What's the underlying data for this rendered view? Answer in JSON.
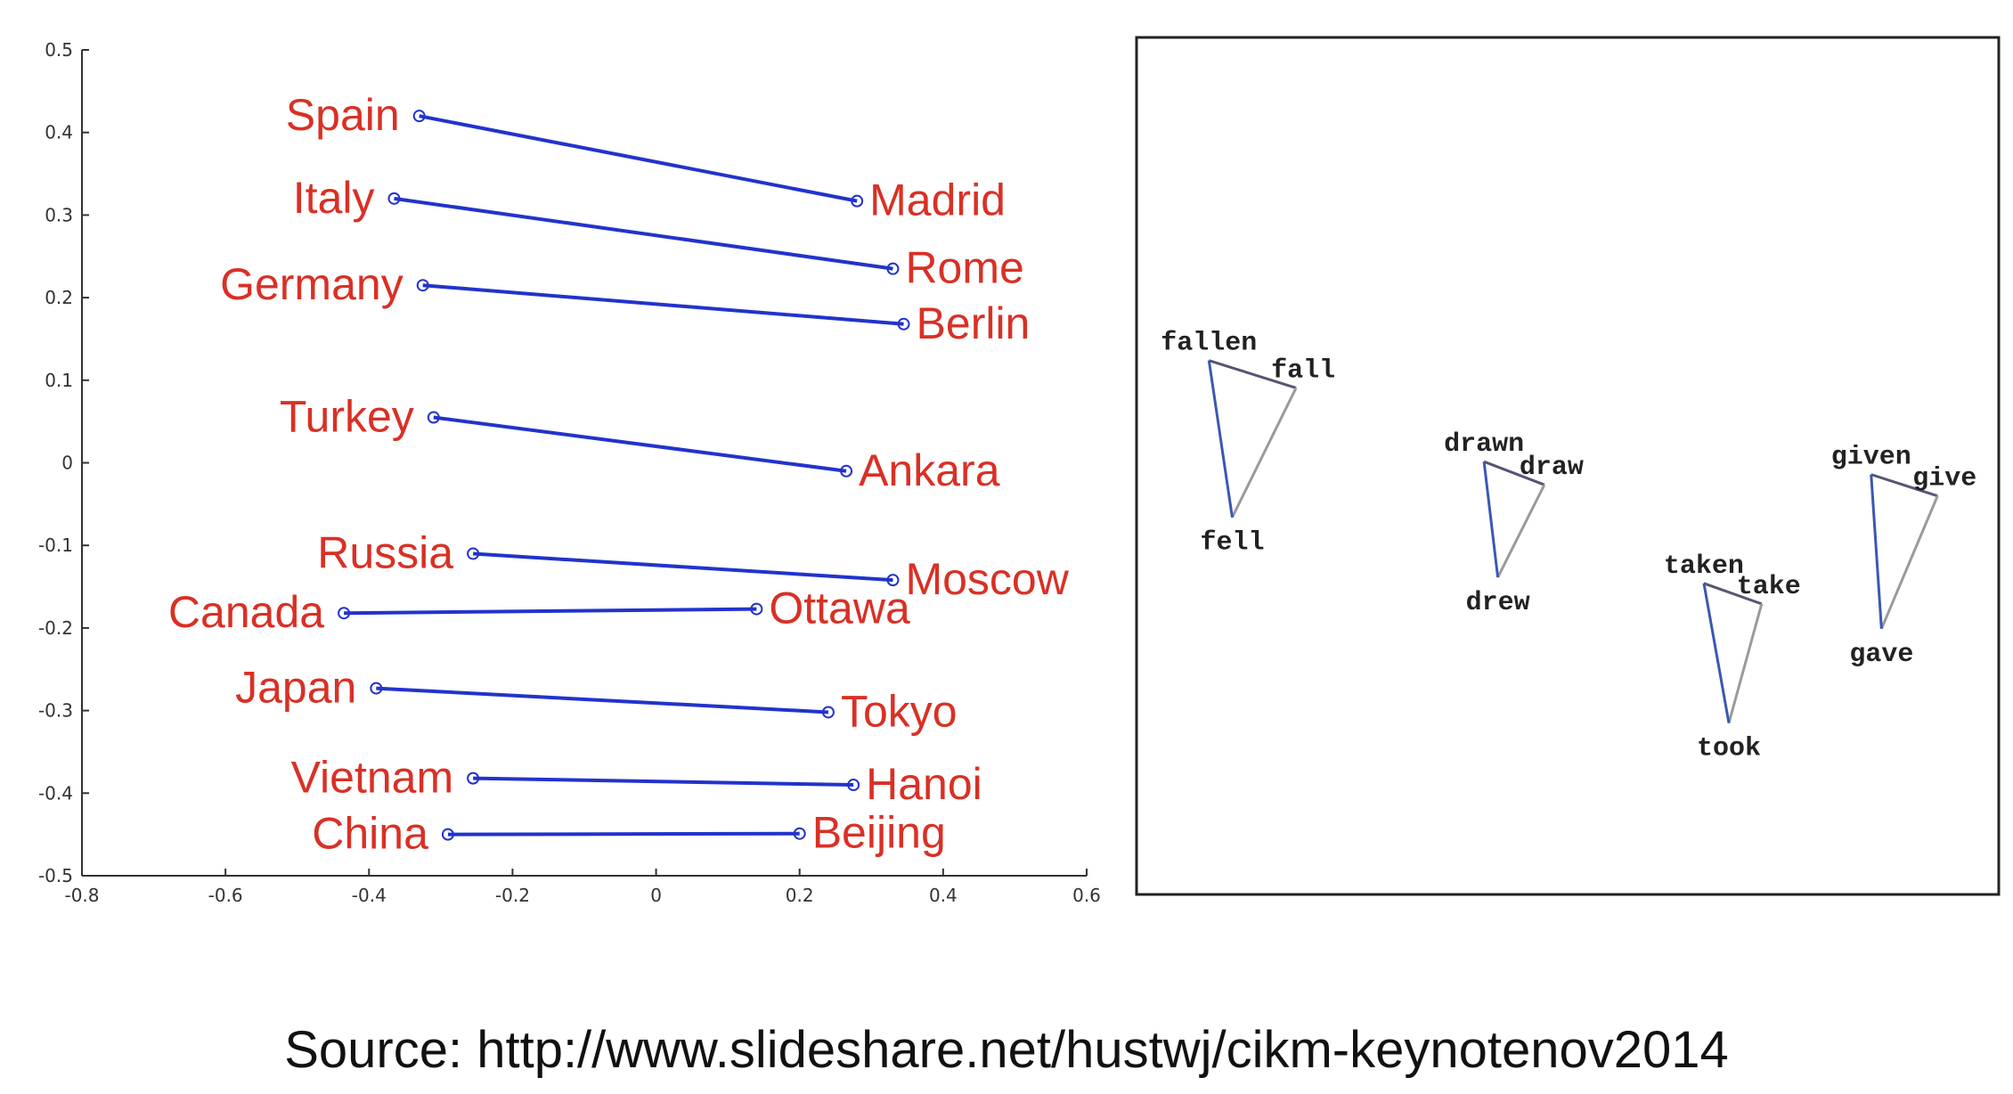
{
  "chart_data": [
    {
      "type": "scatter",
      "title": "",
      "xlabel": "",
      "ylabel": "",
      "xlim": [
        -0.8,
        0.6
      ],
      "ylim": [
        -0.5,
        0.5
      ],
      "xticks": [
        "-0.8",
        "-0.6",
        "-0.4",
        "-0.2",
        "0",
        "0.2",
        "0.4",
        "0.6"
      ],
      "yticks": [
        "0.5",
        "0.4",
        "0.3",
        "0.2",
        "0.1",
        "0",
        "-0.1",
        "-0.2",
        "-0.3",
        "-0.4",
        "-0.5"
      ],
      "label_color": "#d93025",
      "line_color": "#2233cc",
      "pairs": [
        {
          "country": "Spain",
          "capital": "Madrid",
          "country_xy": [
            -0.33,
            0.42
          ],
          "capital_xy": [
            0.28,
            0.317
          ]
        },
        {
          "country": "Italy",
          "capital": "Rome",
          "country_xy": [
            -0.365,
            0.32
          ],
          "capital_xy": [
            0.33,
            0.235
          ]
        },
        {
          "country": "Germany",
          "capital": "Berlin",
          "country_xy": [
            -0.325,
            0.215
          ],
          "capital_xy": [
            0.345,
            0.168
          ]
        },
        {
          "country": "Turkey",
          "capital": "Ankara",
          "country_xy": [
            -0.31,
            0.055
          ],
          "capital_xy": [
            0.265,
            -0.01
          ]
        },
        {
          "country": "Russia",
          "capital": "Moscow",
          "country_xy": [
            -0.255,
            -0.11
          ],
          "capital_xy": [
            0.33,
            -0.142
          ]
        },
        {
          "country": "Canada",
          "capital": "Ottawa",
          "country_xy": [
            -0.435,
            -0.182
          ],
          "capital_xy": [
            0.14,
            -0.177
          ]
        },
        {
          "country": "Japan",
          "capital": "Tokyo",
          "country_xy": [
            -0.39,
            -0.273
          ],
          "capital_xy": [
            0.24,
            -0.302
          ]
        },
        {
          "country": "Vietnam",
          "capital": "Hanoi",
          "country_xy": [
            -0.255,
            -0.382
          ],
          "capital_xy": [
            0.275,
            -0.39
          ]
        },
        {
          "country": "China",
          "capital": "Beijing",
          "country_xy": [
            -0.29,
            -0.45
          ],
          "capital_xy": [
            0.2,
            -0.449
          ]
        }
      ]
    },
    {
      "type": "scatter",
      "title": "",
      "xlim": [
        0,
        1
      ],
      "ylim": [
        0,
        1
      ],
      "triangles": [
        {
          "participle": {
            "label": "fallen",
            "xy": [
              0.084,
              0.623
            ]
          },
          "base": {
            "label": "fall",
            "xy": [
              0.185,
              0.591
            ]
          },
          "past": {
            "label": "fell",
            "xy": [
              0.111,
              0.44
            ]
          }
        },
        {
          "participle": {
            "label": "drawn",
            "xy": [
              0.403,
              0.505
            ]
          },
          "base": {
            "label": "draw",
            "xy": [
              0.473,
              0.478
            ]
          },
          "past": {
            "label": "drew",
            "xy": [
              0.419,
              0.37
            ]
          }
        },
        {
          "participle": {
            "label": "taken",
            "xy": [
              0.658,
              0.363
            ]
          },
          "base": {
            "label": "take",
            "xy": [
              0.725,
              0.339
            ]
          },
          "past": {
            "label": "took",
            "xy": [
              0.687,
              0.2
            ]
          }
        },
        {
          "participle": {
            "label": "given",
            "xy": [
              0.852,
              0.49
            ]
          },
          "base": {
            "label": "give",
            "xy": [
              0.929,
              0.465
            ]
          },
          "past": {
            "label": "gave",
            "xy": [
              0.864,
              0.31
            ]
          }
        }
      ]
    }
  ],
  "caption": "Source: http://www.slideshare.net/hustwj/cikm-keynotenov2014"
}
